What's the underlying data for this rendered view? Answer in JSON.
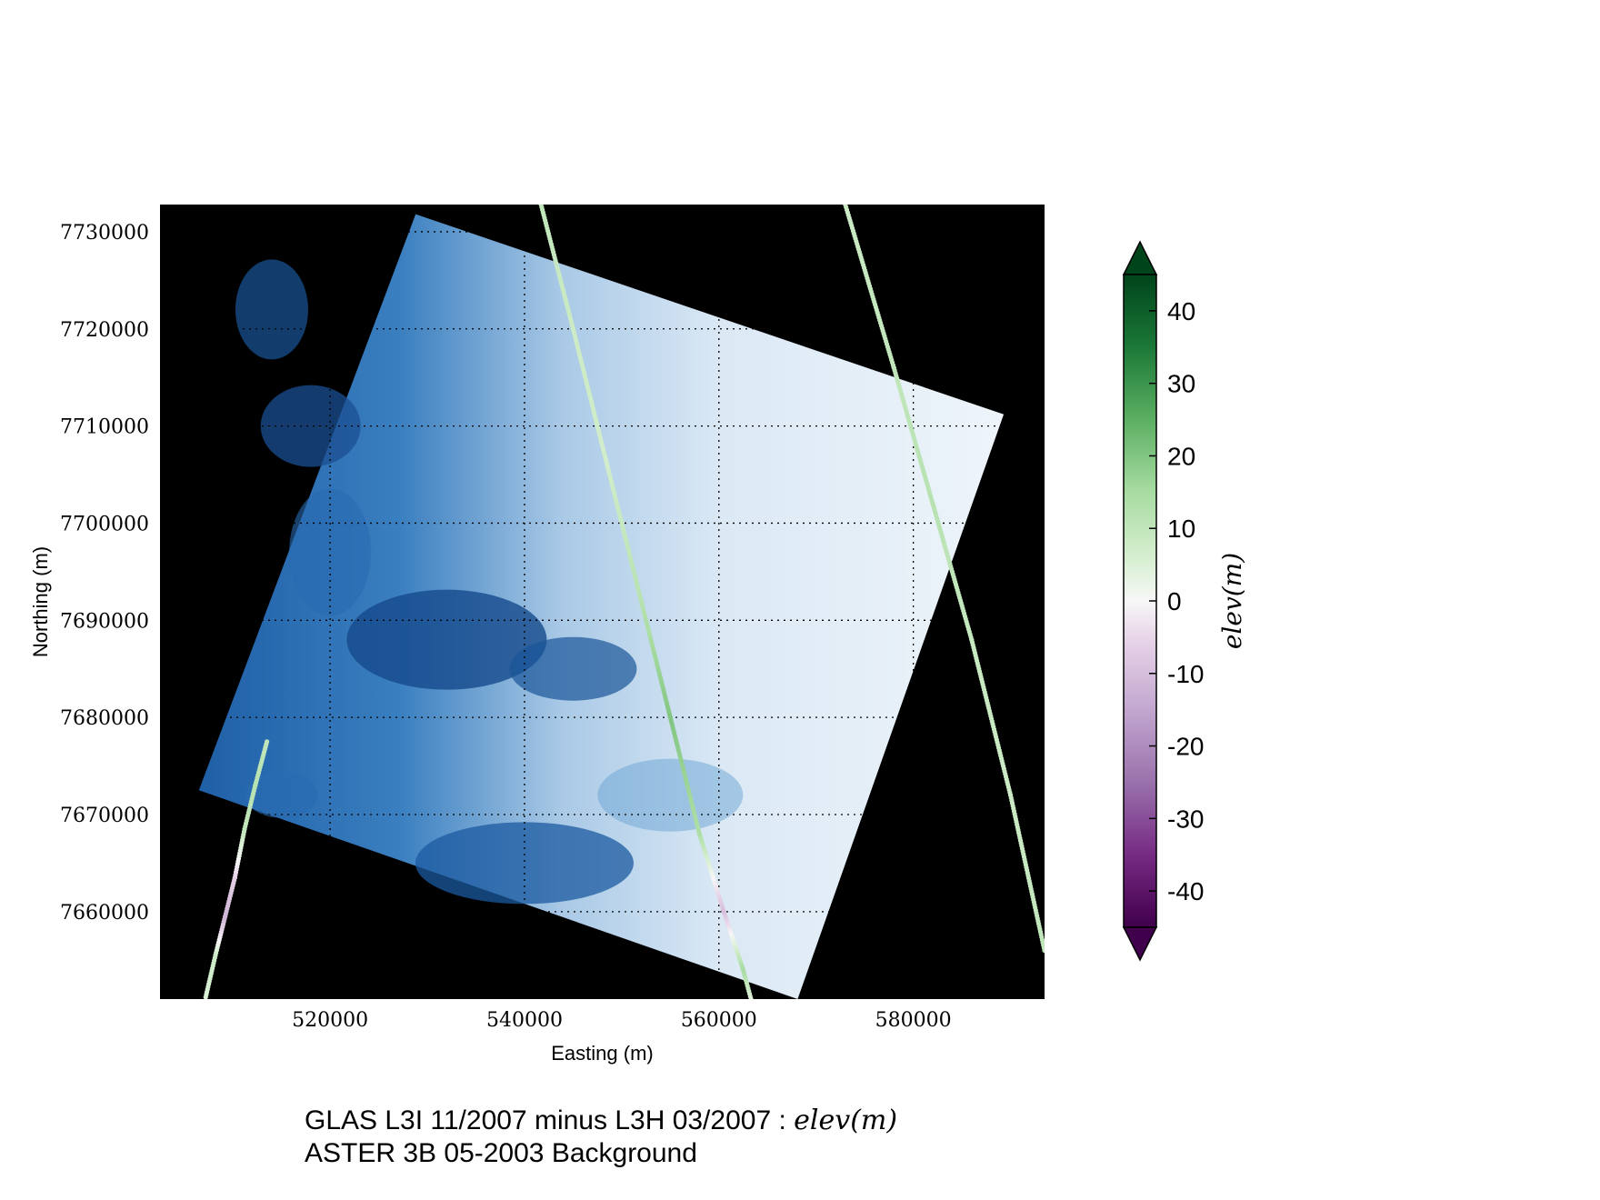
{
  "chart_data": {
    "type": "map",
    "xlabel": "Easting (m)",
    "ylabel": "Northing (m)",
    "xlim": [
      502500,
      593500
    ],
    "ylim": [
      7651000,
      7732800
    ],
    "xticks": [
      520000,
      540000,
      560000,
      580000
    ],
    "xtick_labels": [
      "520000",
      "540000",
      "560000",
      "580000"
    ],
    "yticks": [
      7660000,
      7670000,
      7680000,
      7690000,
      7700000,
      7710000,
      7720000,
      7730000
    ],
    "ytick_labels": [
      "7660000",
      "7670000",
      "7680000",
      "7690000",
      "7700000",
      "7710000",
      "7720000",
      "7730000"
    ],
    "grid": "dotted",
    "background": {
      "description_visible": true,
      "corners": [
        [
          528800,
          7731800
        ],
        [
          589300,
          7711200
        ],
        [
          568100,
          7651000
        ],
        [
          506500,
          7672500
        ]
      ]
    },
    "colorbar": {
      "label": "elev(m)",
      "range": [
        -45,
        45
      ],
      "extend": "both",
      "ticks": [
        40,
        30,
        20,
        10,
        0,
        -10,
        -20,
        -30,
        -40
      ],
      "tick_labels": [
        "40",
        "30",
        "20",
        "10",
        "0",
        "-10",
        "-20",
        "-30",
        "-40"
      ],
      "colormap": "PRGn"
    },
    "series": [
      {
        "values_note": "track",
        "x": [
          541700,
          545000,
          548500,
          552000,
          555000,
          558000,
          560500,
          562500,
          563300
        ],
        "y": [
          7732800,
          7720000,
          7706000,
          7692000,
          7680000,
          7668000,
          7660000,
          7654000,
          7651000
        ],
        "values": [
          10,
          8,
          7,
          12,
          20,
          14,
          -10,
          15,
          5
        ]
      },
      {
        "values_note": "track",
        "x": [
          573000,
          578000,
          582000,
          586000,
          590000,
          593500
        ],
        "y": [
          7732800,
          7716000,
          7702000,
          7688000,
          7672000,
          7656000
        ],
        "values": [
          8,
          10,
          12,
          9,
          8,
          10
        ]
      },
      {
        "values_note": "track",
        "x": [
          507200,
          508200,
          509200,
          510200,
          511200,
          512300,
          513500
        ],
        "y": [
          7651200,
          7655500,
          7659500,
          7663500,
          7668500,
          7673000,
          7677500
        ],
        "values": [
          5,
          8,
          -12,
          -6,
          10,
          12,
          10
        ]
      }
    ]
  },
  "caption": {
    "line1_text": "GLAS L3I 11/2007 minus L3H 03/2007 : ",
    "line1_math": "elev(m)",
    "line2": "ASTER 3B 05-2003 Background"
  }
}
